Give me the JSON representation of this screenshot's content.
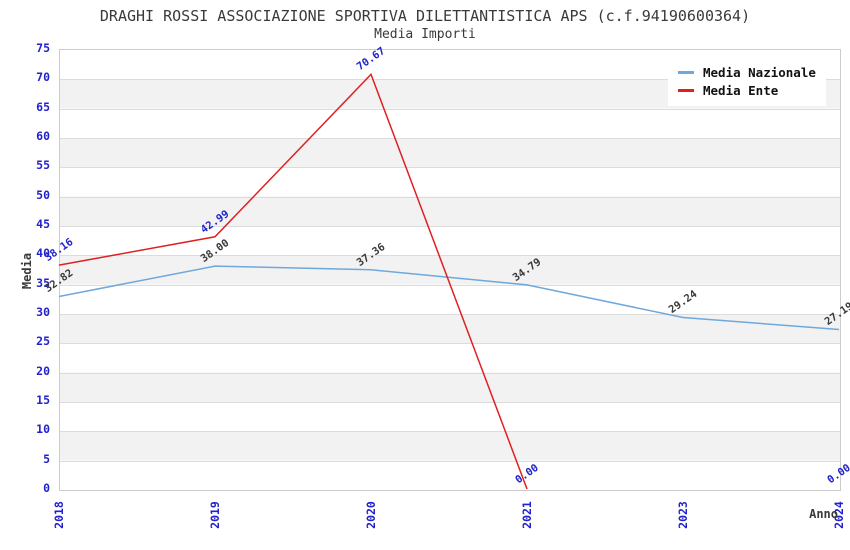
{
  "header": {
    "title": "DRAGHI ROSSI ASSOCIAZIONE SPORTIVA DILETTANTISTICA APS (c.f.94190600364)",
    "subtitle": "Media Importi"
  },
  "axes": {
    "y_title": "Media",
    "x_title": "Anno",
    "y_ticks": [
      0,
      5,
      10,
      15,
      20,
      25,
      30,
      35,
      40,
      45,
      50,
      55,
      60,
      65,
      70,
      75
    ],
    "x_ticks": [
      "2018",
      "2019",
      "2020",
      "2021",
      "2023",
      "2024"
    ]
  },
  "legend": {
    "items": [
      {
        "label": "Media Nazionale",
        "color": "#6fa8dc"
      },
      {
        "label": "Media Ente",
        "color": "#e02020"
      }
    ]
  },
  "colors": {
    "tick_text": "#2222cc",
    "axis_title_text": "#3a3a3a",
    "band_gray": "#f2f2f2",
    "grid_line": "#dcdcdc",
    "plot_border": "#cccccc",
    "national_line": "#6fa8dc",
    "ente_line": "#e02020",
    "national_label_text": "#3a3a3a",
    "ente_label_text": "#2222cc"
  },
  "chart_data": {
    "type": "line",
    "title": "DRAGHI ROSSI ASSOCIAZIONE SPORTIVA DILETTANTISTICA APS (c.f.94190600364)",
    "subtitle": "Media Importi",
    "xlabel": "Anno",
    "ylabel": "Media",
    "ylim": [
      0,
      75
    ],
    "y_tick_step": 5,
    "grid": "horizontal",
    "background_bands": "alternating white/gray every 5 units",
    "legend_position": "top-right",
    "categories": [
      "2018",
      "2019",
      "2020",
      "2021",
      "2023",
      "2024"
    ],
    "series": [
      {
        "name": "Media Nazionale",
        "color": "#6fa8dc",
        "label_color": "#3a3a3a",
        "values": [
          32.82,
          38.0,
          37.36,
          34.79,
          29.24,
          27.19
        ],
        "point_labels": [
          "32.82",
          "38.00",
          "37.36",
          "34.79",
          "29.24",
          "27.19"
        ]
      },
      {
        "name": "Media Ente",
        "color": "#e02020",
        "label_color": "#2222cc",
        "values": [
          38.16,
          42.99,
          70.67,
          0.0,
          null,
          0.0
        ],
        "point_labels": [
          "38.16",
          "42.99",
          "70.67",
          "0.00",
          "",
          "0.00"
        ]
      }
    ]
  }
}
